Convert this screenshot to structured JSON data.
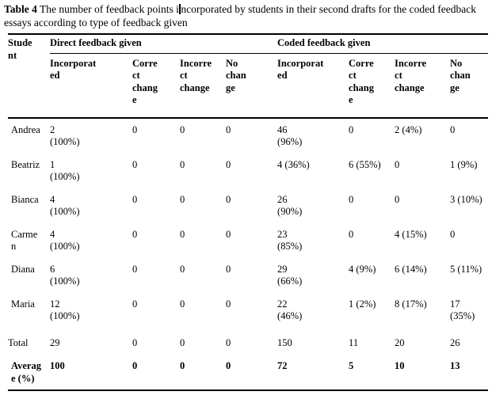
{
  "caption": {
    "label_bold": "Table 4",
    "text_before_caret": " The number of feedback points i",
    "text_after_caret": "ncorporated by students in their second drafts for the coded feedback essays according to type of feedback given"
  },
  "table": {
    "student_header": "Student",
    "groups": [
      {
        "label": "Direct feedback given"
      },
      {
        "label": "Coded feedback given"
      }
    ],
    "sub_headers": [
      "Incorporated",
      "Correct change",
      "Incorrect change",
      "No change"
    ],
    "rows": [
      {
        "student": "Andrea",
        "cells": [
          "2 (100%)",
          "0",
          "0",
          "0",
          "46 (96%)",
          "0",
          "2 (4%)",
          "0"
        ]
      },
      {
        "student": "Beatriz",
        "cells": [
          "1 (100%)",
          "0",
          "0",
          "0",
          "4 (36%)",
          "6 (55%)",
          "0",
          "1 (9%)"
        ]
      },
      {
        "student": "Bianca",
        "cells": [
          "4 (100%)",
          "0",
          "0",
          "0",
          "26 (90%)",
          "0",
          "0",
          "3 (10%)"
        ]
      },
      {
        "student": "Carmen",
        "cells": [
          "4 (100%)",
          "0",
          "0",
          "0",
          "23 (85%)",
          "0",
          "4 (15%)",
          "0"
        ]
      },
      {
        "student": "Diana",
        "cells": [
          "6 (100%)",
          "0",
          "0",
          "0",
          "29 (66%)",
          "4 (9%)",
          "6 (14%)",
          "5 (11%)"
        ]
      },
      {
        "student": "Maria",
        "cells": [
          "12 (100%)",
          "0",
          "0",
          "0",
          "22 (46%)",
          "1 (2%)",
          "8 (17%)",
          "17 (35%)"
        ]
      },
      {
        "student": "Total",
        "cells": [
          "29",
          "0",
          "0",
          "0",
          "150",
          "11",
          "20",
          "26"
        ]
      },
      {
        "student": "Average (%)",
        "cells": [
          "100",
          "0",
          "0",
          "0",
          "72",
          "5",
          "10",
          "13"
        ]
      }
    ]
  },
  "colors": {
    "text": "#000000",
    "background": "#ffffff",
    "rule": "#000000"
  }
}
